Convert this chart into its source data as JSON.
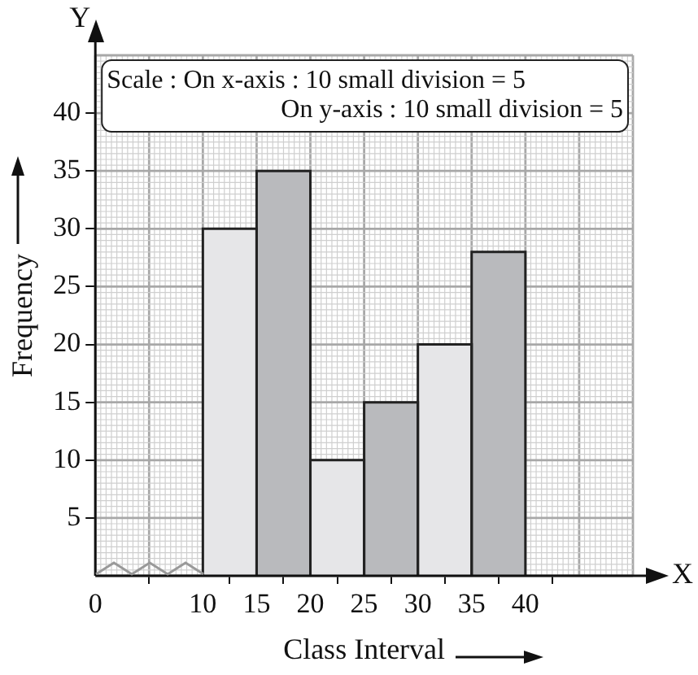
{
  "chart_data": {
    "type": "histogram",
    "bins": [
      10,
      15,
      20,
      25,
      30,
      35,
      40
    ],
    "values": [
      30,
      35,
      10,
      15,
      20,
      28
    ],
    "colors": [
      "#e6e6e8",
      "#b9babd",
      "#e6e6e8",
      "#b9babd",
      "#e6e6e8",
      "#b9babd"
    ],
    "xlabel": "Class Interval",
    "ylabel": "Frequency",
    "xlim": [
      0,
      50
    ],
    "xticks": [
      0,
      10,
      15,
      20,
      25,
      30,
      35,
      40
    ],
    "ylim": [
      0,
      45
    ],
    "yticks": [
      5,
      10,
      15,
      20,
      25,
      30,
      35,
      40
    ],
    "grid": true,
    "annotations": [
      "Y",
      "X",
      "Scale : On x-axis : 10 small division = 5",
      "On y-axis : 10 small division = 5"
    ]
  }
}
